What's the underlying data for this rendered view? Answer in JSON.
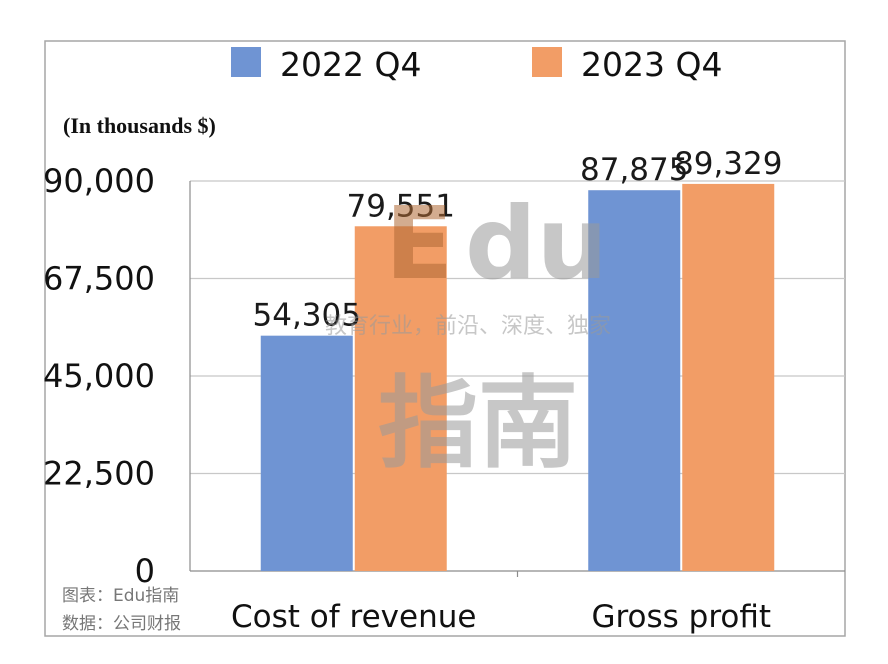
{
  "chart_data": {
    "type": "bar",
    "unit_label": "(In thousands $)",
    "categories": [
      "Cost of revenue",
      "Gross profit"
    ],
    "series": [
      {
        "name": "2022 Q4",
        "color": "#6f94d3",
        "values": [
          54305,
          87875
        ],
        "labels": [
          "54,305",
          "87,875"
        ]
      },
      {
        "name": "2023 Q4",
        "color": "#f29d66",
        "values": [
          79551,
          89329
        ],
        "labels": [
          "79,551",
          "89,329"
        ]
      }
    ],
    "ylim": [
      0,
      90000
    ],
    "yticks": [
      0,
      22500,
      45000,
      67500,
      90000
    ],
    "ytick_labels": [
      "0",
      "22,500",
      "45,000",
      "67,500",
      "90,000"
    ],
    "legend_position": "top",
    "grid": true
  },
  "watermark": {
    "top": "Edu",
    "middle": "教育行业，前沿、深度、独家",
    "bottom": "指南"
  },
  "source": {
    "line1": "图表：Edu指南",
    "line2": "数据：公司财报"
  }
}
